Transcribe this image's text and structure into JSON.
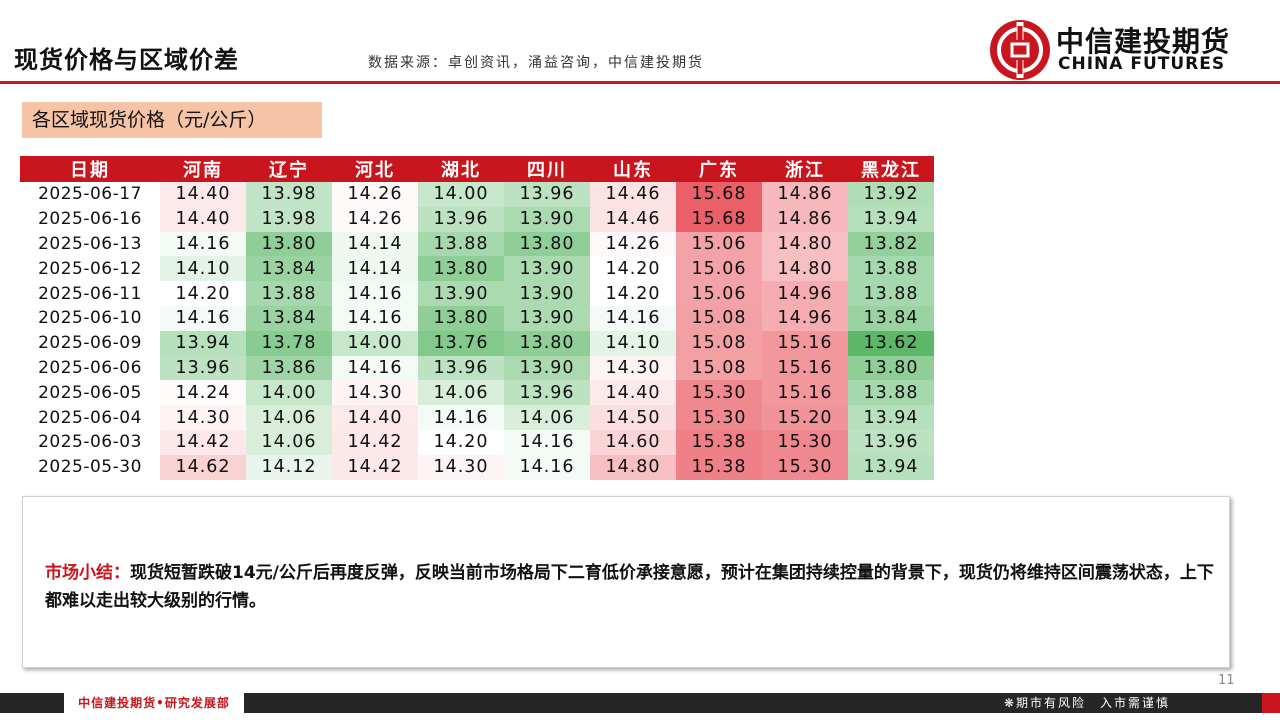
{
  "header": {
    "title": "现货价格与区域价差",
    "source": "数据来源：卓创资讯，涌益咨询，中信建投期货",
    "logo_cn": "中信建投期货",
    "logo_en": "CHINA FUTURES",
    "brand_color": "#c9151e"
  },
  "section": {
    "title": "各区域现货价格（元/公斤）"
  },
  "table": {
    "columns": [
      "日期",
      "河南",
      "辽宁",
      "河北",
      "湖北",
      "四川",
      "山东",
      "广东",
      "浙江",
      "黑龙江"
    ],
    "rows": [
      {
        "date": "2025-06-17",
        "values": [
          "14.40",
          "13.98",
          "14.26",
          "14.00",
          "13.96",
          "14.46",
          "15.68",
          "14.86",
          "13.92"
        ]
      },
      {
        "date": "2025-06-16",
        "values": [
          "14.40",
          "13.98",
          "14.26",
          "13.96",
          "13.90",
          "14.46",
          "15.68",
          "14.86",
          "13.94"
        ]
      },
      {
        "date": "2025-06-13",
        "values": [
          "14.16",
          "13.80",
          "14.14",
          "13.88",
          "13.80",
          "14.26",
          "15.06",
          "14.80",
          "13.82"
        ]
      },
      {
        "date": "2025-06-12",
        "values": [
          "14.10",
          "13.84",
          "14.14",
          "13.80",
          "13.90",
          "14.20",
          "15.06",
          "14.80",
          "13.88"
        ]
      },
      {
        "date": "2025-06-11",
        "values": [
          "14.20",
          "13.88",
          "14.16",
          "13.90",
          "13.90",
          "14.20",
          "15.06",
          "14.96",
          "13.88"
        ]
      },
      {
        "date": "2025-06-10",
        "values": [
          "14.16",
          "13.84",
          "14.16",
          "13.80",
          "13.90",
          "14.16",
          "15.08",
          "14.96",
          "13.84"
        ]
      },
      {
        "date": "2025-06-09",
        "values": [
          "13.94",
          "13.78",
          "14.00",
          "13.76",
          "13.80",
          "14.10",
          "15.08",
          "15.16",
          "13.62"
        ]
      },
      {
        "date": "2025-06-06",
        "values": [
          "13.96",
          "13.86",
          "14.16",
          "13.96",
          "13.90",
          "14.30",
          "15.08",
          "15.16",
          "13.80"
        ]
      },
      {
        "date": "2025-06-05",
        "values": [
          "14.24",
          "14.00",
          "14.30",
          "14.06",
          "13.96",
          "14.40",
          "15.30",
          "15.16",
          "13.88"
        ]
      },
      {
        "date": "2025-06-04",
        "values": [
          "14.30",
          "14.06",
          "14.40",
          "14.16",
          "14.06",
          "14.50",
          "15.30",
          "15.20",
          "13.94"
        ]
      },
      {
        "date": "2025-06-03",
        "values": [
          "14.42",
          "14.06",
          "14.42",
          "14.20",
          "14.16",
          "14.60",
          "15.38",
          "15.30",
          "13.96"
        ]
      },
      {
        "date": "2025-05-30",
        "values": [
          "14.62",
          "14.12",
          "14.42",
          "14.30",
          "14.16",
          "14.80",
          "15.38",
          "15.30",
          "13.94"
        ]
      }
    ],
    "heat_low_color": "#4caf50",
    "heat_high_color": "#e8353d"
  },
  "summary": {
    "label": "市场小结：",
    "text": "现货短暂跌破14元/公斤后再度反弹，反映当前市场格局下二育低价承接意愿，预计在集团持续控量的背景下，现货仍将维持区间震荡状态，上下都难以走出较大级别的行情。"
  },
  "footer": {
    "page_number": "11",
    "left_text": "中信建投期货•研究发展部",
    "right_text": "❋期市有风险　入市需谨慎"
  }
}
